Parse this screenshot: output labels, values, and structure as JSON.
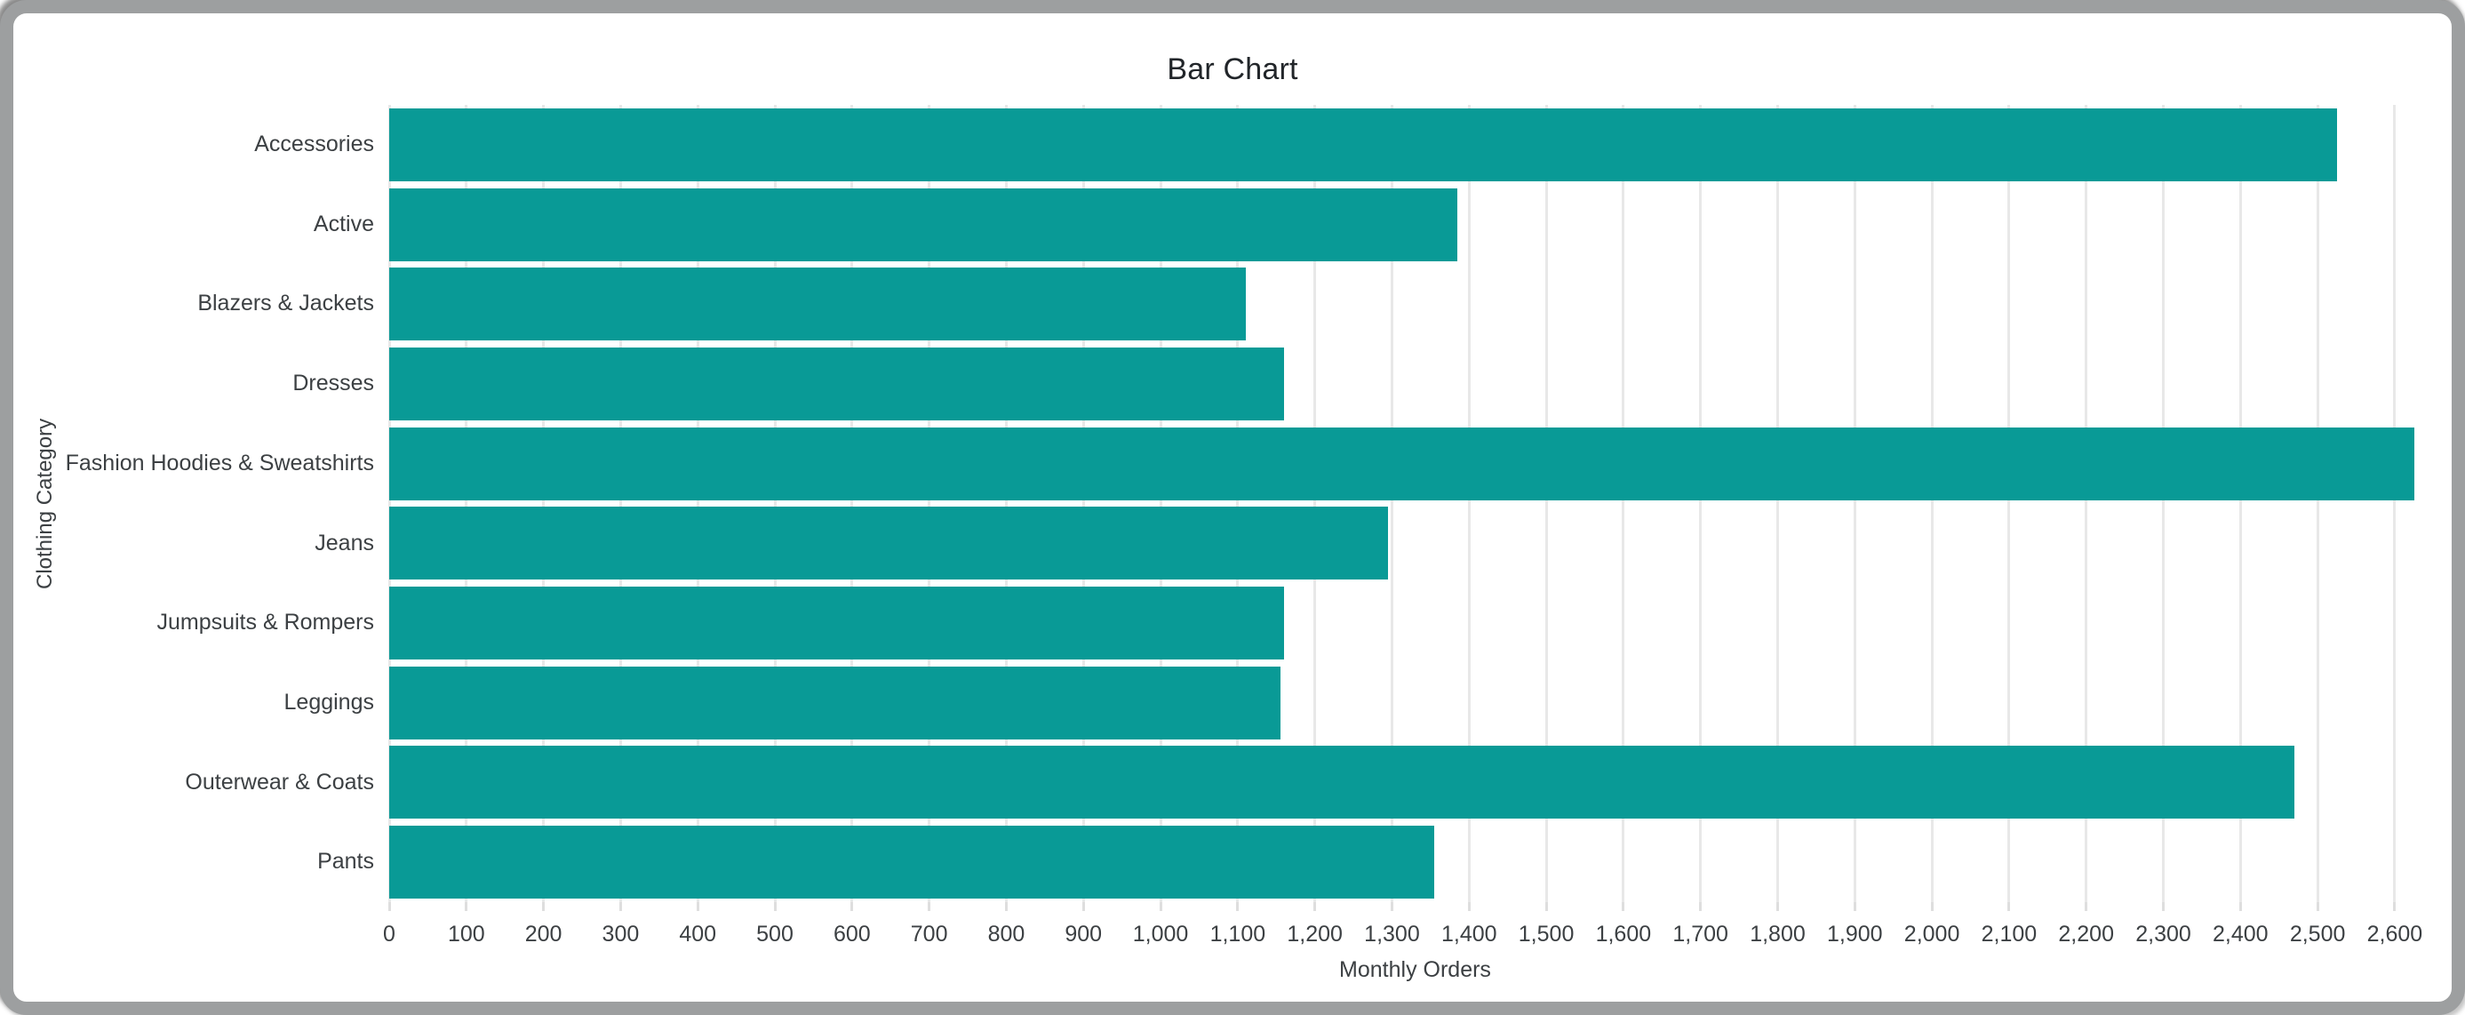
{
  "chart_data": {
    "type": "bar",
    "orientation": "horizontal",
    "title": "Bar Chart",
    "xlabel": "Monthly Orders",
    "ylabel": "Clothing Category",
    "categories": [
      "Accessories",
      "Active",
      "Blazers & Jackets",
      "Dresses",
      "Fashion Hoodies & Sweatshirts",
      "Jeans",
      "Jumpsuits & Rompers",
      "Leggings",
      "Outerwear & Coats",
      "Pants"
    ],
    "values": [
      2525,
      1385,
      1110,
      1160,
      2625,
      1295,
      1160,
      1155,
      2470,
      1355
    ],
    "xlim": [
      0,
      2660
    ],
    "xticks": [
      0,
      100,
      200,
      300,
      400,
      500,
      600,
      700,
      800,
      900,
      1000,
      1100,
      1200,
      1300,
      1400,
      1500,
      1600,
      1700,
      1800,
      1900,
      2000,
      2100,
      2200,
      2300,
      2400,
      2500,
      2600
    ],
    "xtick_format": "comma-thousands",
    "grid": true,
    "legend": false,
    "bar_color": "#099a96",
    "gridline_color": "#e8e8e8",
    "text_color": "#3c4043",
    "title_color": "#212529",
    "frame_color": "#9d9fa0"
  }
}
